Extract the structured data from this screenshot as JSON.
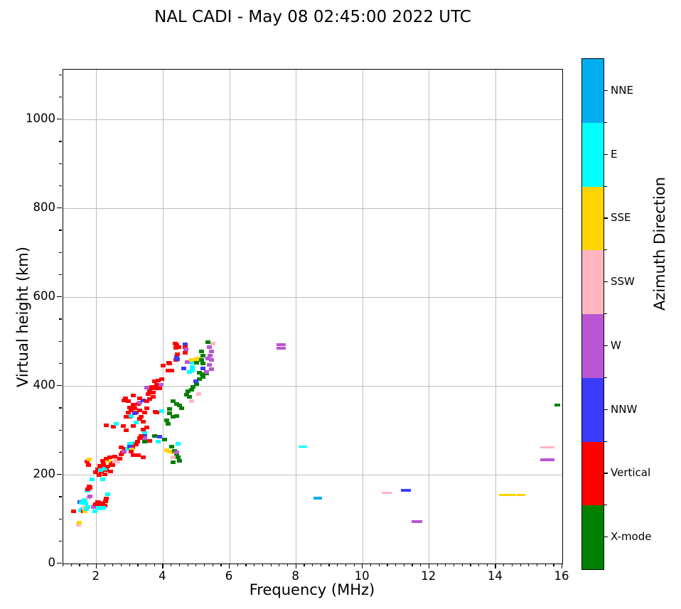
{
  "title": "NAL CADI - May 08 02:45:00 2022 UTC",
  "x_axis": {
    "label": "Frequency (MHz)",
    "min": 1,
    "max": 16,
    "major_ticks": [
      2,
      4,
      6,
      8,
      10,
      12,
      14,
      16
    ],
    "minor_tick_step": 0.25
  },
  "y_axis": {
    "label": "Virtual height (km)",
    "min": 0,
    "max": 1112,
    "major_ticks": [
      0,
      200,
      400,
      600,
      800,
      1000
    ],
    "minor_tick_step": 50
  },
  "colorbar": {
    "label": "Azimuth Direction",
    "categories": [
      {
        "name": "NNE",
        "color": "#00AEEF"
      },
      {
        "name": "E",
        "color": "#00FFFF"
      },
      {
        "name": "SSE",
        "color": "#FFD400"
      },
      {
        "name": "SSW",
        "color": "#FFB6C1"
      },
      {
        "name": "W",
        "color": "#BA55D3"
      },
      {
        "name": "NNW",
        "color": "#3B3BFB"
      },
      {
        "name": "Vertical",
        "color": "#FF0000"
      },
      {
        "name": "X-mode",
        "color": "#008000"
      }
    ]
  },
  "chart_data": {
    "type": "scatter",
    "title": "NAL CADI - May 08 02:45:00 2022 UTC",
    "xlabel": "Frequency (MHz)",
    "ylabel": "Virtual height (km)",
    "xlim": [
      1,
      16
    ],
    "ylim": [
      0,
      1112
    ],
    "grid": true,
    "grid_color": "#BEBEBE",
    "legend_position": "right-colorbar",
    "marker": {
      "w": 7,
      "h": 5
    },
    "color_map": {
      "NNE": "#00AEEF",
      "E": "#00FFFF",
      "SSE": "#FFD400",
      "SSW": "#FFB6C1",
      "W": "#BA55D3",
      "NNW": "#3B3BFB",
      "V": "#FF0000",
      "X": "#008000"
    },
    "points": [
      [
        1.32,
        117,
        "V"
      ],
      [
        1.45,
        88,
        "SSW"
      ],
      [
        1.48,
        92,
        "SSE"
      ],
      [
        1.53,
        120,
        "E"
      ],
      [
        1.57,
        123,
        "E"
      ],
      [
        1.6,
        118,
        "V"
      ],
      [
        1.63,
        125,
        "SSW"
      ],
      [
        1.66,
        117,
        "SSE"
      ],
      [
        1.7,
        122,
        "E"
      ],
      [
        1.73,
        127,
        "E"
      ],
      [
        1.51,
        139,
        "NNW"
      ],
      [
        1.55,
        137,
        "E"
      ],
      [
        1.6,
        141,
        "E"
      ],
      [
        1.65,
        144,
        "E"
      ],
      [
        1.68,
        136,
        "E"
      ],
      [
        1.75,
        148,
        "SSW"
      ],
      [
        1.8,
        152,
        "W"
      ],
      [
        1.72,
        164,
        "E"
      ],
      [
        1.74,
        168,
        "V"
      ],
      [
        1.77,
        173,
        "V"
      ],
      [
        1.8,
        170,
        "V"
      ],
      [
        1.86,
        190,
        "E"
      ],
      [
        2.18,
        190,
        "E"
      ],
      [
        1.9,
        128,
        "W"
      ],
      [
        1.95,
        130,
        "W"
      ],
      [
        1.98,
        134,
        "V"
      ],
      [
        2.03,
        139,
        "V"
      ],
      [
        2.08,
        137,
        "V"
      ],
      [
        2.13,
        133,
        "V"
      ],
      [
        2.18,
        136,
        "V"
      ],
      [
        2.24,
        131,
        "V"
      ],
      [
        2.05,
        125,
        "E"
      ],
      [
        2.12,
        124,
        "E"
      ],
      [
        2.2,
        126,
        "E"
      ],
      [
        1.95,
        118,
        "E"
      ],
      [
        2.3,
        147,
        "V"
      ],
      [
        2.33,
        156,
        "E"
      ],
      [
        2.28,
        140,
        "V"
      ],
      [
        1.72,
        230,
        "V"
      ],
      [
        1.78,
        235,
        "SSE"
      ],
      [
        1.76,
        222,
        "V"
      ],
      [
        1.98,
        205,
        "V"
      ],
      [
        2.03,
        212,
        "V"
      ],
      [
        2.08,
        200,
        "V"
      ],
      [
        2.1,
        220,
        "V"
      ],
      [
        2.14,
        208,
        "V"
      ],
      [
        2.19,
        215,
        "V"
      ],
      [
        2.24,
        201,
        "V"
      ],
      [
        2.29,
        210,
        "V"
      ],
      [
        2.13,
        211,
        "E"
      ],
      [
        2.24,
        213,
        "E"
      ],
      [
        2.34,
        218,
        "V"
      ],
      [
        2.44,
        226,
        "V"
      ],
      [
        2.35,
        231,
        "SSE"
      ],
      [
        2.49,
        222,
        "V"
      ],
      [
        2.54,
        230,
        "SSW"
      ],
      [
        2.59,
        238,
        "SSW"
      ],
      [
        2.64,
        229,
        "SSW"
      ],
      [
        2.69,
        236,
        "V"
      ],
      [
        2.54,
        241,
        "V"
      ],
      [
        2.39,
        240,
        "V"
      ],
      [
        2.29,
        236,
        "V"
      ],
      [
        2.19,
        232,
        "V"
      ],
      [
        2.74,
        245,
        "V"
      ],
      [
        2.79,
        250,
        "V"
      ],
      [
        2.21,
        224,
        "V"
      ],
      [
        2.42,
        208,
        "V"
      ],
      [
        2.74,
        262,
        "V"
      ],
      [
        2.84,
        258,
        "V"
      ],
      [
        2.94,
        258,
        "E"
      ],
      [
        2.99,
        265,
        "V"
      ],
      [
        3.04,
        270,
        "V"
      ],
      [
        3.09,
        262,
        "V"
      ],
      [
        2.99,
        270,
        "E"
      ],
      [
        2.99,
        264,
        "NNW"
      ],
      [
        3.45,
        282,
        "W"
      ],
      [
        3.45,
        290,
        "NNW"
      ],
      [
        3.45,
        296,
        "E"
      ],
      [
        3.4,
        302,
        "V"
      ],
      [
        3.5,
        306,
        "V"
      ],
      [
        3.45,
        274,
        "X"
      ],
      [
        3.59,
        276,
        "V"
      ],
      [
        3.14,
        272,
        "E"
      ],
      [
        3.19,
        268,
        "V"
      ],
      [
        3.24,
        275,
        "V"
      ],
      [
        3.29,
        282,
        "V"
      ],
      [
        3.34,
        288,
        "V"
      ],
      [
        3.07,
        257,
        "SSE"
      ],
      [
        3.05,
        252,
        "V"
      ],
      [
        3.1,
        244,
        "V"
      ],
      [
        3.25,
        244,
        "V"
      ],
      [
        3.4,
        240,
        "V"
      ],
      [
        2.82,
        252,
        "W"
      ],
      [
        3.75,
        288,
        "X"
      ],
      [
        3.9,
        286,
        "NNW"
      ],
      [
        4.05,
        280,
        "X"
      ],
      [
        3.85,
        274,
        "E"
      ],
      [
        2.3,
        312,
        "V"
      ],
      [
        2.5,
        308,
        "V"
      ],
      [
        2.6,
        315,
        "E"
      ],
      [
        4.1,
        256,
        "SSE"
      ],
      [
        4.2,
        252,
        "SSE"
      ],
      [
        4.3,
        250,
        "SSE"
      ],
      [
        4.25,
        264,
        "X"
      ],
      [
        4.35,
        254,
        "X"
      ],
      [
        4.4,
        245,
        "X"
      ],
      [
        4.45,
        240,
        "X"
      ],
      [
        4.3,
        240,
        "SSW"
      ],
      [
        4.45,
        270,
        "E"
      ],
      [
        4.3,
        228,
        "X"
      ],
      [
        4.5,
        232,
        "X"
      ],
      [
        4.4,
        250,
        "W"
      ],
      [
        2.82,
        368,
        "V"
      ],
      [
        2.86,
        372,
        "V"
      ],
      [
        2.9,
        330,
        "V"
      ],
      [
        2.95,
        340,
        "V"
      ],
      [
        3.0,
        352,
        "V"
      ],
      [
        3.05,
        345,
        "V"
      ],
      [
        3.1,
        358,
        "V"
      ],
      [
        3.0,
        330,
        "V"
      ],
      [
        3.15,
        350,
        "V"
      ],
      [
        3.2,
        340,
        "V"
      ],
      [
        3.25,
        360,
        "V"
      ],
      [
        3.3,
        345,
        "V"
      ],
      [
        3.29,
        363,
        "W"
      ],
      [
        3.4,
        368,
        "NNW"
      ],
      [
        3.1,
        310,
        "V"
      ],
      [
        3.2,
        318,
        "E"
      ],
      [
        3.3,
        325,
        "V"
      ],
      [
        3.35,
        330,
        "V"
      ],
      [
        3.45,
        340,
        "V"
      ],
      [
        3.5,
        350,
        "V"
      ],
      [
        3.4,
        320,
        "V"
      ],
      [
        2.9,
        300,
        "V"
      ],
      [
        2.8,
        310,
        "V"
      ],
      [
        3.1,
        378,
        "V"
      ],
      [
        3.3,
        372,
        "V"
      ],
      [
        2.95,
        365,
        "V"
      ],
      [
        3.05,
        332,
        "E"
      ],
      [
        3.15,
        338,
        "NNW"
      ],
      [
        3.55,
        382,
        "V"
      ],
      [
        3.6,
        390,
        "V"
      ],
      [
        3.65,
        398,
        "V"
      ],
      [
        3.7,
        385,
        "V"
      ],
      [
        3.76,
        342,
        "V"
      ],
      [
        3.8,
        340,
        "V"
      ],
      [
        3.75,
        395,
        "V"
      ],
      [
        3.8,
        402,
        "V"
      ],
      [
        3.9,
        395,
        "V"
      ],
      [
        3.93,
        403,
        "W"
      ],
      [
        3.85,
        412,
        "V"
      ],
      [
        3.95,
        415,
        "V"
      ],
      [
        3.6,
        370,
        "V"
      ],
      [
        3.7,
        375,
        "V"
      ],
      [
        3.5,
        365,
        "V"
      ],
      [
        3.5,
        396,
        "W"
      ],
      [
        3.75,
        410,
        "V"
      ],
      [
        3.95,
        344,
        "E"
      ],
      [
        4.1,
        322,
        "X"
      ],
      [
        4.15,
        315,
        "X"
      ],
      [
        4.2,
        338,
        "X"
      ],
      [
        4.3,
        330,
        "X"
      ],
      [
        4.4,
        332,
        "X"
      ],
      [
        4.2,
        348,
        "X"
      ],
      [
        4.3,
        366,
        "X"
      ],
      [
        4.4,
        360,
        "X"
      ],
      [
        4.5,
        356,
        "X"
      ],
      [
        4.55,
        350,
        "X"
      ],
      [
        4.7,
        380,
        "X"
      ],
      [
        4.8,
        376,
        "X"
      ],
      [
        4.75,
        388,
        "X"
      ],
      [
        4.85,
        392,
        "X"
      ],
      [
        4.9,
        398,
        "X"
      ],
      [
        5.0,
        404,
        "X"
      ],
      [
        5.1,
        415,
        "X"
      ],
      [
        5.2,
        420,
        "X"
      ],
      [
        5.3,
        428,
        "X"
      ],
      [
        5.1,
        430,
        "X"
      ],
      [
        5.18,
        427,
        "X"
      ],
      [
        4.85,
        366,
        "SSW"
      ],
      [
        5.06,
        382,
        "SSW"
      ],
      [
        4.98,
        410,
        "NNW"
      ],
      [
        5.2,
        440,
        "NNW"
      ],
      [
        4.8,
        432,
        "E"
      ],
      [
        4.0,
        445,
        "V"
      ],
      [
        4.15,
        435,
        "V"
      ],
      [
        4.2,
        450,
        "V"
      ],
      [
        4.25,
        434,
        "V"
      ],
      [
        4.38,
        458,
        "V"
      ],
      [
        4.17,
        452,
        "V"
      ],
      [
        4.42,
        460,
        "NNW"
      ],
      [
        4.4,
        465,
        "NNW"
      ],
      [
        4.62,
        440,
        "NNW"
      ],
      [
        4.36,
        495,
        "V"
      ],
      [
        4.4,
        492,
        "V"
      ],
      [
        4.38,
        485,
        "V"
      ],
      [
        4.42,
        472,
        "V"
      ],
      [
        4.47,
        488,
        "V"
      ],
      [
        4.66,
        494,
        "NNW"
      ],
      [
        4.66,
        488,
        "V"
      ],
      [
        4.68,
        482,
        "W"
      ],
      [
        4.67,
        475,
        "V"
      ],
      [
        4.72,
        454,
        "W"
      ],
      [
        4.88,
        452,
        "E"
      ],
      [
        4.88,
        442,
        "E"
      ],
      [
        4.88,
        434,
        "E"
      ],
      [
        4.85,
        458,
        "SSE"
      ],
      [
        5.0,
        460,
        "SSE"
      ],
      [
        5.0,
        452,
        "X"
      ],
      [
        5.1,
        462,
        "SSE"
      ],
      [
        5.35,
        498,
        "X"
      ],
      [
        5.5,
        496,
        "SSW"
      ],
      [
        5.4,
        488,
        "W"
      ],
      [
        5.45,
        478,
        "W"
      ],
      [
        5.42,
        468,
        "W"
      ],
      [
        5.45,
        458,
        "W"
      ],
      [
        5.4,
        448,
        "W"
      ],
      [
        5.45,
        438,
        "W"
      ],
      [
        5.15,
        478,
        "X"
      ],
      [
        5.2,
        468,
        "X"
      ],
      [
        5.15,
        458,
        "X"
      ],
      [
        5.2,
        450,
        "X"
      ],
      [
        5.3,
        432,
        "W"
      ],
      [
        5.35,
        462,
        "W"
      ],
      [
        7.55,
        493,
        "W",
        13,
        4
      ],
      [
        7.55,
        485,
        "W",
        13,
        4
      ],
      [
        8.2,
        264,
        "E",
        12,
        3
      ],
      [
        8.65,
        147,
        "NNE",
        12,
        4
      ],
      [
        10.73,
        160,
        "SSW",
        14,
        3
      ],
      [
        11.3,
        165,
        "NNW",
        14,
        4
      ],
      [
        11.63,
        94,
        "W",
        15,
        4
      ],
      [
        14.35,
        154,
        "SSE",
        24,
        3
      ],
      [
        14.75,
        154,
        "SSE",
        12,
        3
      ],
      [
        15.55,
        261,
        "SSW",
        20,
        3
      ],
      [
        15.55,
        234,
        "W",
        20,
        4
      ],
      [
        15.85,
        357,
        "X",
        8,
        4
      ]
    ]
  }
}
